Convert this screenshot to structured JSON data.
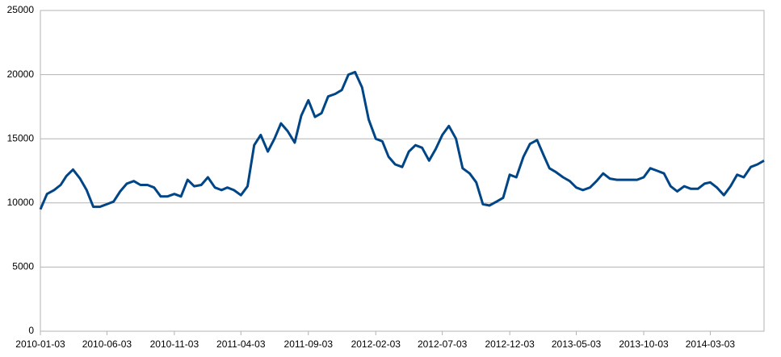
{
  "chart_data": {
    "type": "line",
    "x": [
      "2010-01-03",
      "2010-01-18",
      "2010-02-03",
      "2010-02-18",
      "2010-03-03",
      "2010-03-18",
      "2010-04-03",
      "2010-04-18",
      "2010-05-03",
      "2010-05-18",
      "2010-06-03",
      "2010-06-18",
      "2010-07-03",
      "2010-07-18",
      "2010-08-03",
      "2010-08-18",
      "2010-09-03",
      "2010-09-18",
      "2010-10-03",
      "2010-10-18",
      "2010-11-03",
      "2010-11-18",
      "2010-12-03",
      "2010-12-18",
      "2011-01-03",
      "2011-01-18",
      "2011-02-03",
      "2011-02-18",
      "2011-03-03",
      "2011-03-18",
      "2011-04-03",
      "2011-04-18",
      "2011-05-03",
      "2011-05-18",
      "2011-06-03",
      "2011-06-18",
      "2011-07-03",
      "2011-07-18",
      "2011-08-03",
      "2011-08-18",
      "2011-09-03",
      "2011-09-18",
      "2011-10-03",
      "2011-10-18",
      "2011-11-03",
      "2011-11-18",
      "2011-12-03",
      "2011-12-18",
      "2012-01-03",
      "2012-01-18",
      "2012-02-03",
      "2012-02-18",
      "2012-03-03",
      "2012-03-18",
      "2012-04-03",
      "2012-04-18",
      "2012-05-03",
      "2012-05-18",
      "2012-06-03",
      "2012-06-18",
      "2012-07-03",
      "2012-07-18",
      "2012-08-03",
      "2012-08-18",
      "2012-09-03",
      "2012-09-18",
      "2012-10-03",
      "2012-10-18",
      "2012-11-03",
      "2012-11-18",
      "2012-12-03",
      "2012-12-18",
      "2013-01-03",
      "2013-01-18",
      "2013-02-03",
      "2013-02-18",
      "2013-03-03",
      "2013-03-18",
      "2013-04-03",
      "2013-04-18",
      "2013-05-03",
      "2013-05-18",
      "2013-06-03",
      "2013-06-18",
      "2013-07-03",
      "2013-07-18",
      "2013-08-03",
      "2013-08-18",
      "2013-09-03",
      "2013-09-18",
      "2013-10-03",
      "2013-10-18",
      "2013-11-03",
      "2013-11-18",
      "2013-12-03",
      "2013-12-18",
      "2014-01-03",
      "2014-01-18",
      "2014-02-03",
      "2014-02-18",
      "2014-03-03",
      "2014-03-18",
      "2014-04-03",
      "2014-04-18",
      "2014-05-03",
      "2014-05-18",
      "2014-06-03",
      "2014-06-18",
      "2014-07-03"
    ],
    "series": [
      {
        "color": "#004586",
        "values": [
          9500,
          10700,
          11000,
          11400,
          12100,
          12600,
          11900,
          11000,
          9700,
          9700,
          9900,
          10100,
          10900,
          11500,
          11700,
          11400,
          11400,
          11200,
          10500,
          10500,
          10700,
          10500,
          11800,
          11300,
          11400,
          12000,
          11200,
          11000,
          11200,
          11000,
          10600,
          11300,
          14500,
          15300,
          14000,
          15000,
          16200,
          15600,
          14700,
          16800,
          18000,
          16700,
          17000,
          18300,
          18500,
          18800,
          20000,
          20200,
          19000,
          16500,
          15000,
          14800,
          13600,
          13000,
          12800,
          14000,
          14500,
          14300,
          13300,
          14200,
          15300,
          16000,
          15000,
          12700,
          12300,
          11600,
          9900,
          9800,
          10100,
          10400,
          12200,
          12000,
          13600,
          14600,
          14900,
          13700,
          12700,
          12400,
          12000,
          11700,
          11200,
          11000,
          11200,
          11700,
          12300,
          11900,
          11800,
          11800,
          11800,
          11800,
          12000,
          12700,
          12500,
          12300,
          11300,
          10900,
          11300,
          11100,
          11100,
          11500,
          11600,
          11200,
          10600,
          11300,
          12200,
          12000,
          12800,
          13000,
          13300
        ]
      }
    ],
    "xlim": [
      "2010-01-03",
      "2014-07-03"
    ],
    "xticks": [
      "2010-01-03",
      "2010-06-03",
      "2010-11-03",
      "2011-04-03",
      "2011-09-03",
      "2012-02-03",
      "2012-07-03",
      "2012-12-03",
      "2013-05-03",
      "2013-10-03",
      "2014-03-03"
    ],
    "ylim": [
      0,
      25000
    ],
    "yticks": [
      0,
      5000,
      10000,
      15000,
      20000,
      25000
    ],
    "grid": true
  }
}
